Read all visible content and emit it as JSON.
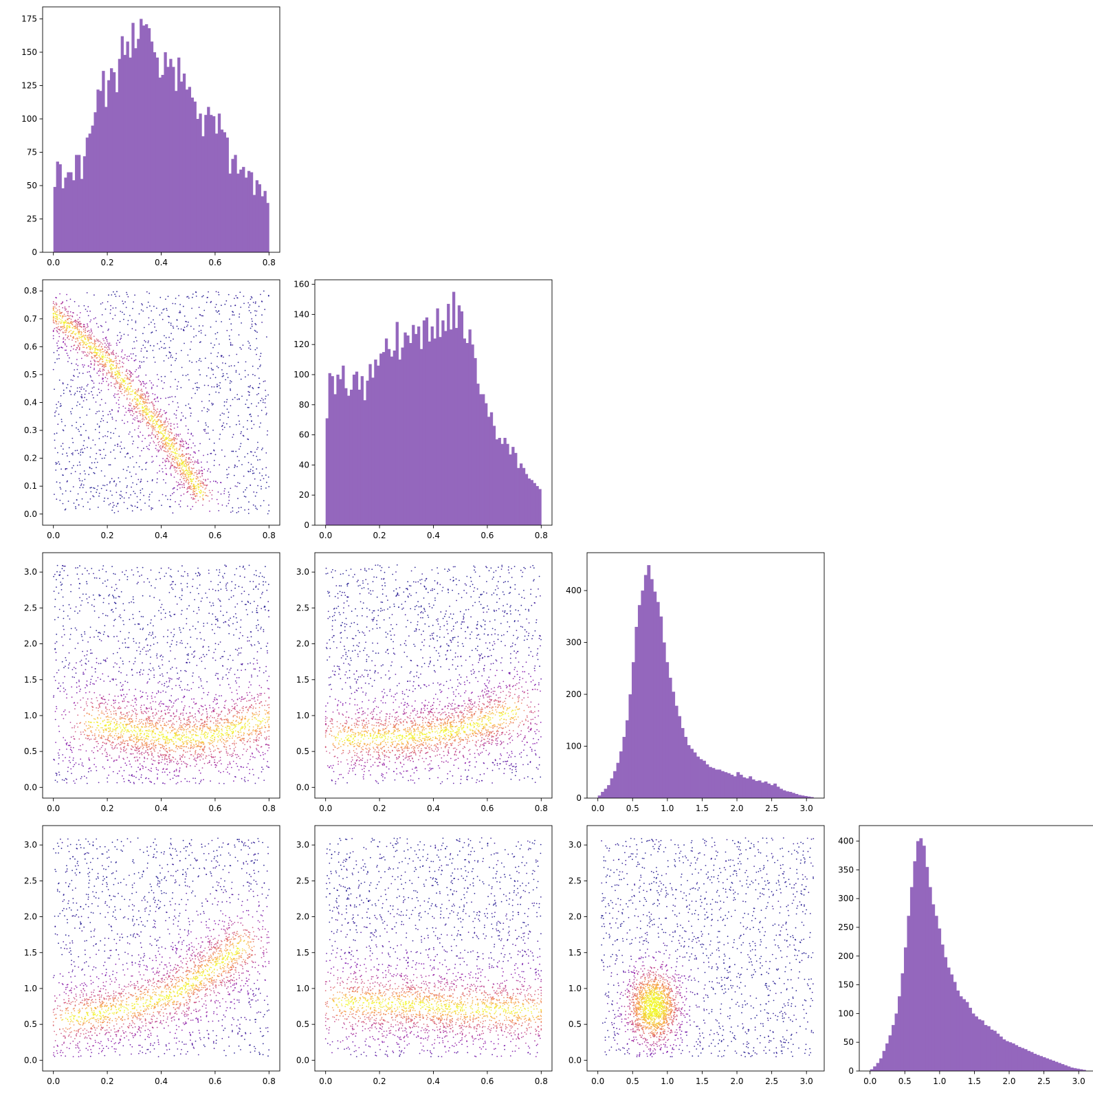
{
  "colors": {
    "hist_fill": "#9467bd",
    "axis": "#000000",
    "scatter_colormap": "plasma"
  },
  "chart_data": [
    {
      "type": "histogram",
      "row": 0,
      "col": 0,
      "xlim": [
        -0.04,
        0.84
      ],
      "ylim": [
        0,
        184
      ],
      "xticks": [
        "0.0",
        "0.2",
        "0.4",
        "0.6",
        "0.8"
      ],
      "yticks": [
        "0",
        "25",
        "50",
        "75",
        "100",
        "125",
        "150",
        "175"
      ],
      "xtick_values": [
        0,
        0.2,
        0.4,
        0.6,
        0.8
      ],
      "ytick_values": [
        0,
        25,
        50,
        75,
        100,
        125,
        150,
        175
      ],
      "bin_start": 0.0,
      "bin_end": 0.8,
      "counts": [
        49,
        68,
        66,
        48,
        56,
        60,
        60,
        54,
        73,
        73,
        55,
        72,
        86,
        89,
        95,
        105,
        122,
        121,
        136,
        109,
        129,
        138,
        135,
        120,
        145,
        162,
        148,
        158,
        146,
        172,
        153,
        160,
        175,
        170,
        171,
        168,
        158,
        150,
        146,
        131,
        133,
        150,
        139,
        145,
        139,
        121,
        146,
        128,
        134,
        122,
        124,
        116,
        113,
        100,
        104,
        87,
        103,
        109,
        103,
        102,
        89,
        104,
        92,
        90,
        86,
        59,
        70,
        73,
        59,
        62,
        64,
        56,
        61,
        60,
        43,
        54,
        51,
        42,
        46,
        37
      ]
    },
    {
      "type": "scatter",
      "row": 1,
      "col": 0,
      "xlim": [
        -0.04,
        0.84
      ],
      "ylim": [
        -0.04,
        0.84
      ],
      "xticks": [
        "0.0",
        "0.2",
        "0.4",
        "0.6",
        "0.8"
      ],
      "yticks": [
        "0.0",
        "0.1",
        "0.2",
        "0.3",
        "0.4",
        "0.5",
        "0.6",
        "0.7",
        "0.8"
      ],
      "xtick_values": [
        0,
        0.2,
        0.4,
        0.6,
        0.8
      ],
      "ytick_values": [
        0,
        0.1,
        0.2,
        0.3,
        0.4,
        0.5,
        0.6,
        0.7,
        0.8
      ],
      "point_count": 3000,
      "x_range": [
        0,
        0.8
      ],
      "y_range": [
        0,
        0.8
      ],
      "density_ridge": [
        [
          0.0,
          0.72
        ],
        [
          0.2,
          0.55
        ],
        [
          0.4,
          0.3
        ],
        [
          0.55,
          0.07
        ]
      ],
      "ridge_width": 0.06
    },
    {
      "type": "histogram",
      "row": 1,
      "col": 1,
      "xlim": [
        -0.04,
        0.84
      ],
      "ylim": [
        0,
        163
      ],
      "xticks": [
        "0.0",
        "0.2",
        "0.4",
        "0.6",
        "0.8"
      ],
      "yticks": [
        "0",
        "20",
        "40",
        "60",
        "80",
        "100",
        "120",
        "140",
        "160"
      ],
      "xtick_values": [
        0,
        0.2,
        0.4,
        0.6,
        0.8
      ],
      "ytick_values": [
        0,
        20,
        40,
        60,
        80,
        100,
        120,
        140,
        160
      ],
      "bin_start": 0.0,
      "bin_end": 0.8,
      "counts": [
        71,
        101,
        99,
        87,
        100,
        97,
        106,
        91,
        86,
        90,
        100,
        102,
        90,
        99,
        83,
        96,
        107,
        98,
        110,
        106,
        114,
        115,
        124,
        117,
        112,
        116,
        135,
        110,
        118,
        128,
        126,
        121,
        133,
        127,
        132,
        117,
        136,
        138,
        122,
        132,
        124,
        144,
        125,
        136,
        129,
        147,
        130,
        155,
        131,
        146,
        142,
        124,
        121,
        130,
        120,
        111,
        94,
        87,
        87,
        81,
        72,
        75,
        66,
        57,
        58,
        54,
        58,
        54,
        47,
        52,
        48,
        38,
        41,
        38,
        34,
        31,
        30,
        28,
        26,
        24
      ]
    },
    {
      "type": "scatter",
      "row": 2,
      "col": 0,
      "xlim": [
        -0.04,
        0.84
      ],
      "ylim": [
        -0.15,
        3.27
      ],
      "xticks": [
        "0.0",
        "0.2",
        "0.4",
        "0.6",
        "0.8"
      ],
      "yticks": [
        "0.0",
        "0.5",
        "1.0",
        "1.5",
        "2.0",
        "2.5",
        "3.0"
      ],
      "xtick_values": [
        0,
        0.2,
        0.4,
        0.6,
        0.8
      ],
      "ytick_values": [
        0,
        0.5,
        1.0,
        1.5,
        2.0,
        2.5,
        3.0
      ],
      "point_count": 3000,
      "x_range": [
        0,
        0.8
      ],
      "y_range": [
        0.05,
        3.1
      ],
      "density_ridge": [
        [
          0.15,
          0.9
        ],
        [
          0.3,
          0.78
        ],
        [
          0.45,
          0.68
        ],
        [
          0.6,
          0.72
        ],
        [
          0.78,
          0.95
        ]
      ],
      "ridge_width": 0.13
    },
    {
      "type": "scatter",
      "row": 2,
      "col": 1,
      "xlim": [
        -0.04,
        0.84
      ],
      "ylim": [
        -0.15,
        3.27
      ],
      "xticks": [
        "0.0",
        "0.2",
        "0.4",
        "0.6",
        "0.8"
      ],
      "yticks": [
        "0.0",
        "0.5",
        "1.0",
        "1.5",
        "2.0",
        "2.5",
        "3.0"
      ],
      "xtick_values": [
        0,
        0.2,
        0.4,
        0.6,
        0.8
      ],
      "ytick_values": [
        0,
        0.5,
        1.0,
        1.5,
        2.0,
        2.5,
        3.0
      ],
      "point_count": 3000,
      "x_range": [
        0,
        0.8
      ],
      "y_range": [
        0.05,
        3.1
      ],
      "density_ridge": [
        [
          0.05,
          0.68
        ],
        [
          0.3,
          0.7
        ],
        [
          0.5,
          0.8
        ],
        [
          0.7,
          1.05
        ]
      ],
      "ridge_width": 0.12
    },
    {
      "type": "histogram",
      "row": 2,
      "col": 2,
      "xlim": [
        -0.155,
        3.255
      ],
      "ylim": [
        0,
        473
      ],
      "xticks": [
        "0.0",
        "0.5",
        "1.0",
        "1.5",
        "2.0",
        "2.5",
        "3.0"
      ],
      "yticks": [
        "0",
        "100",
        "200",
        "300",
        "400"
      ],
      "xtick_values": [
        0,
        0.5,
        1.0,
        1.5,
        2.0,
        2.5,
        3.0
      ],
      "ytick_values": [
        0,
        100,
        200,
        300,
        400
      ],
      "bin_start": 0.0,
      "bin_end": 3.1,
      "counts": [
        5,
        12,
        18,
        25,
        38,
        52,
        68,
        90,
        118,
        150,
        200,
        262,
        330,
        372,
        400,
        430,
        449,
        422,
        398,
        378,
        350,
        300,
        262,
        232,
        205,
        178,
        158,
        135,
        118,
        102,
        95,
        88,
        80,
        75,
        72,
        65,
        60,
        58,
        55,
        55,
        52,
        50,
        48,
        45,
        42,
        50,
        45,
        40,
        38,
        42,
        36,
        33,
        34,
        30,
        32,
        28,
        25,
        28,
        22,
        18,
        15,
        13,
        12,
        10,
        8,
        6,
        5,
        4,
        3,
        2
      ]
    },
    {
      "type": "scatter",
      "row": 3,
      "col": 0,
      "xlim": [
        -0.04,
        0.84
      ],
      "ylim": [
        -0.15,
        3.27
      ],
      "xticks": [
        "0.0",
        "0.2",
        "0.4",
        "0.6",
        "0.8"
      ],
      "yticks": [
        "0.0",
        "0.5",
        "1.0",
        "1.5",
        "2.0",
        "2.5",
        "3.0"
      ],
      "xtick_values": [
        0,
        0.2,
        0.4,
        0.6,
        0.8
      ],
      "ytick_values": [
        0,
        0.5,
        1.0,
        1.5,
        2.0,
        2.5,
        3.0
      ],
      "point_count": 3000,
      "x_range": [
        0,
        0.8
      ],
      "y_range": [
        0.05,
        3.1
      ],
      "density_ridge": [
        [
          0.05,
          0.58
        ],
        [
          0.25,
          0.7
        ],
        [
          0.45,
          0.92
        ],
        [
          0.6,
          1.3
        ],
        [
          0.7,
          1.6
        ]
      ],
      "ridge_width": 0.12
    },
    {
      "type": "scatter",
      "row": 3,
      "col": 1,
      "xlim": [
        -0.04,
        0.84
      ],
      "ylim": [
        -0.15,
        3.27
      ],
      "xticks": [
        "0.0",
        "0.2",
        "0.4",
        "0.6",
        "0.8"
      ],
      "yticks": [
        "0.0",
        "0.5",
        "1.0",
        "1.5",
        "2.0",
        "2.5",
        "3.0"
      ],
      "xtick_values": [
        0,
        0.2,
        0.4,
        0.6,
        0.8
      ],
      "ytick_values": [
        0,
        0.5,
        1.0,
        1.5,
        2.0,
        2.5,
        3.0
      ],
      "point_count": 3000,
      "x_range": [
        0,
        0.8
      ],
      "y_range": [
        0.05,
        3.1
      ],
      "density_ridge": [
        [
          0.05,
          0.8
        ],
        [
          0.3,
          0.78
        ],
        [
          0.5,
          0.72
        ],
        [
          0.78,
          0.68
        ]
      ],
      "ridge_width": 0.13
    },
    {
      "type": "scatter",
      "row": 3,
      "col": 2,
      "xlim": [
        -0.155,
        3.255
      ],
      "ylim": [
        -0.15,
        3.27
      ],
      "xticks": [
        "0.0",
        "0.5",
        "1.0",
        "1.5",
        "2.0",
        "2.5",
        "3.0"
      ],
      "yticks": [
        "0.0",
        "0.5",
        "1.0",
        "1.5",
        "2.0",
        "2.5",
        "3.0"
      ],
      "xtick_values": [
        0,
        0.5,
        1.0,
        1.5,
        2.0,
        2.5,
        3.0
      ],
      "ytick_values": [
        0,
        0.5,
        1.0,
        1.5,
        2.0,
        2.5,
        3.0
      ],
      "point_count": 3000,
      "x_range": [
        0.05,
        3.1
      ],
      "y_range": [
        0.05,
        3.1
      ],
      "density_center": [
        0.8,
        0.75
      ],
      "density_spread": [
        0.18,
        0.25
      ]
    },
    {
      "type": "histogram",
      "row": 3,
      "col": 3,
      "xlim": [
        -0.155,
        3.255
      ],
      "ylim": [
        0,
        427
      ],
      "xticks": [
        "0.0",
        "0.5",
        "1.0",
        "1.5",
        "2.0",
        "2.5",
        "3.0"
      ],
      "yticks": [
        "0",
        "50",
        "100",
        "150",
        "200",
        "250",
        "300",
        "350",
        "400"
      ],
      "xtick_values": [
        0,
        0.5,
        1.0,
        1.5,
        2.0,
        2.5,
        3.0
      ],
      "ytick_values": [
        0,
        50,
        100,
        150,
        200,
        250,
        300,
        350,
        400
      ],
      "bin_start": 0.0,
      "bin_end": 3.1,
      "counts": [
        3,
        8,
        14,
        22,
        35,
        48,
        62,
        80,
        100,
        130,
        170,
        215,
        270,
        320,
        365,
        400,
        405,
        392,
        355,
        320,
        290,
        270,
        248,
        220,
        198,
        180,
        168,
        155,
        140,
        130,
        125,
        120,
        110,
        100,
        95,
        90,
        88,
        80,
        78,
        72,
        70,
        65,
        60,
        55,
        52,
        50,
        48,
        45,
        42,
        40,
        38,
        35,
        33,
        30,
        28,
        26,
        24,
        22,
        20,
        18,
        16,
        14,
        12,
        10,
        8,
        6,
        5,
        4,
        3,
        2
      ]
    }
  ]
}
